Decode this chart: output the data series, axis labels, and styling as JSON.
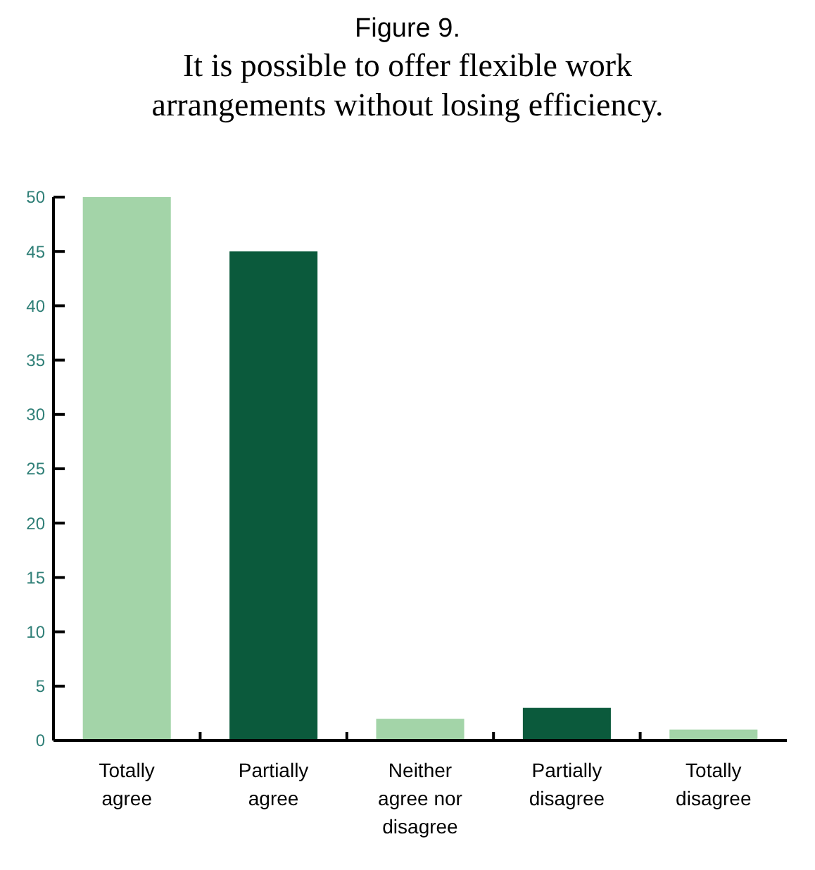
{
  "chart_data": {
    "type": "bar",
    "title": "Figure 9.",
    "subtitle": "It is possible to offer flexible work arrangements without losing efficiency.",
    "categories": [
      "Totally agree",
      "Partially agree",
      "Neither agree nor disagree",
      "Partially disagree",
      "Totally disagree"
    ],
    "values": [
      50,
      45,
      2,
      3,
      1
    ],
    "colors": [
      "#a3d4a8",
      "#0b5a3c",
      "#a3d4a8",
      "#0b5a3c",
      "#a3d4a8"
    ],
    "ylim": [
      0,
      50
    ],
    "yticks": [
      0,
      5,
      10,
      15,
      20,
      25,
      30,
      35,
      40,
      45,
      50
    ],
    "grid": false
  }
}
